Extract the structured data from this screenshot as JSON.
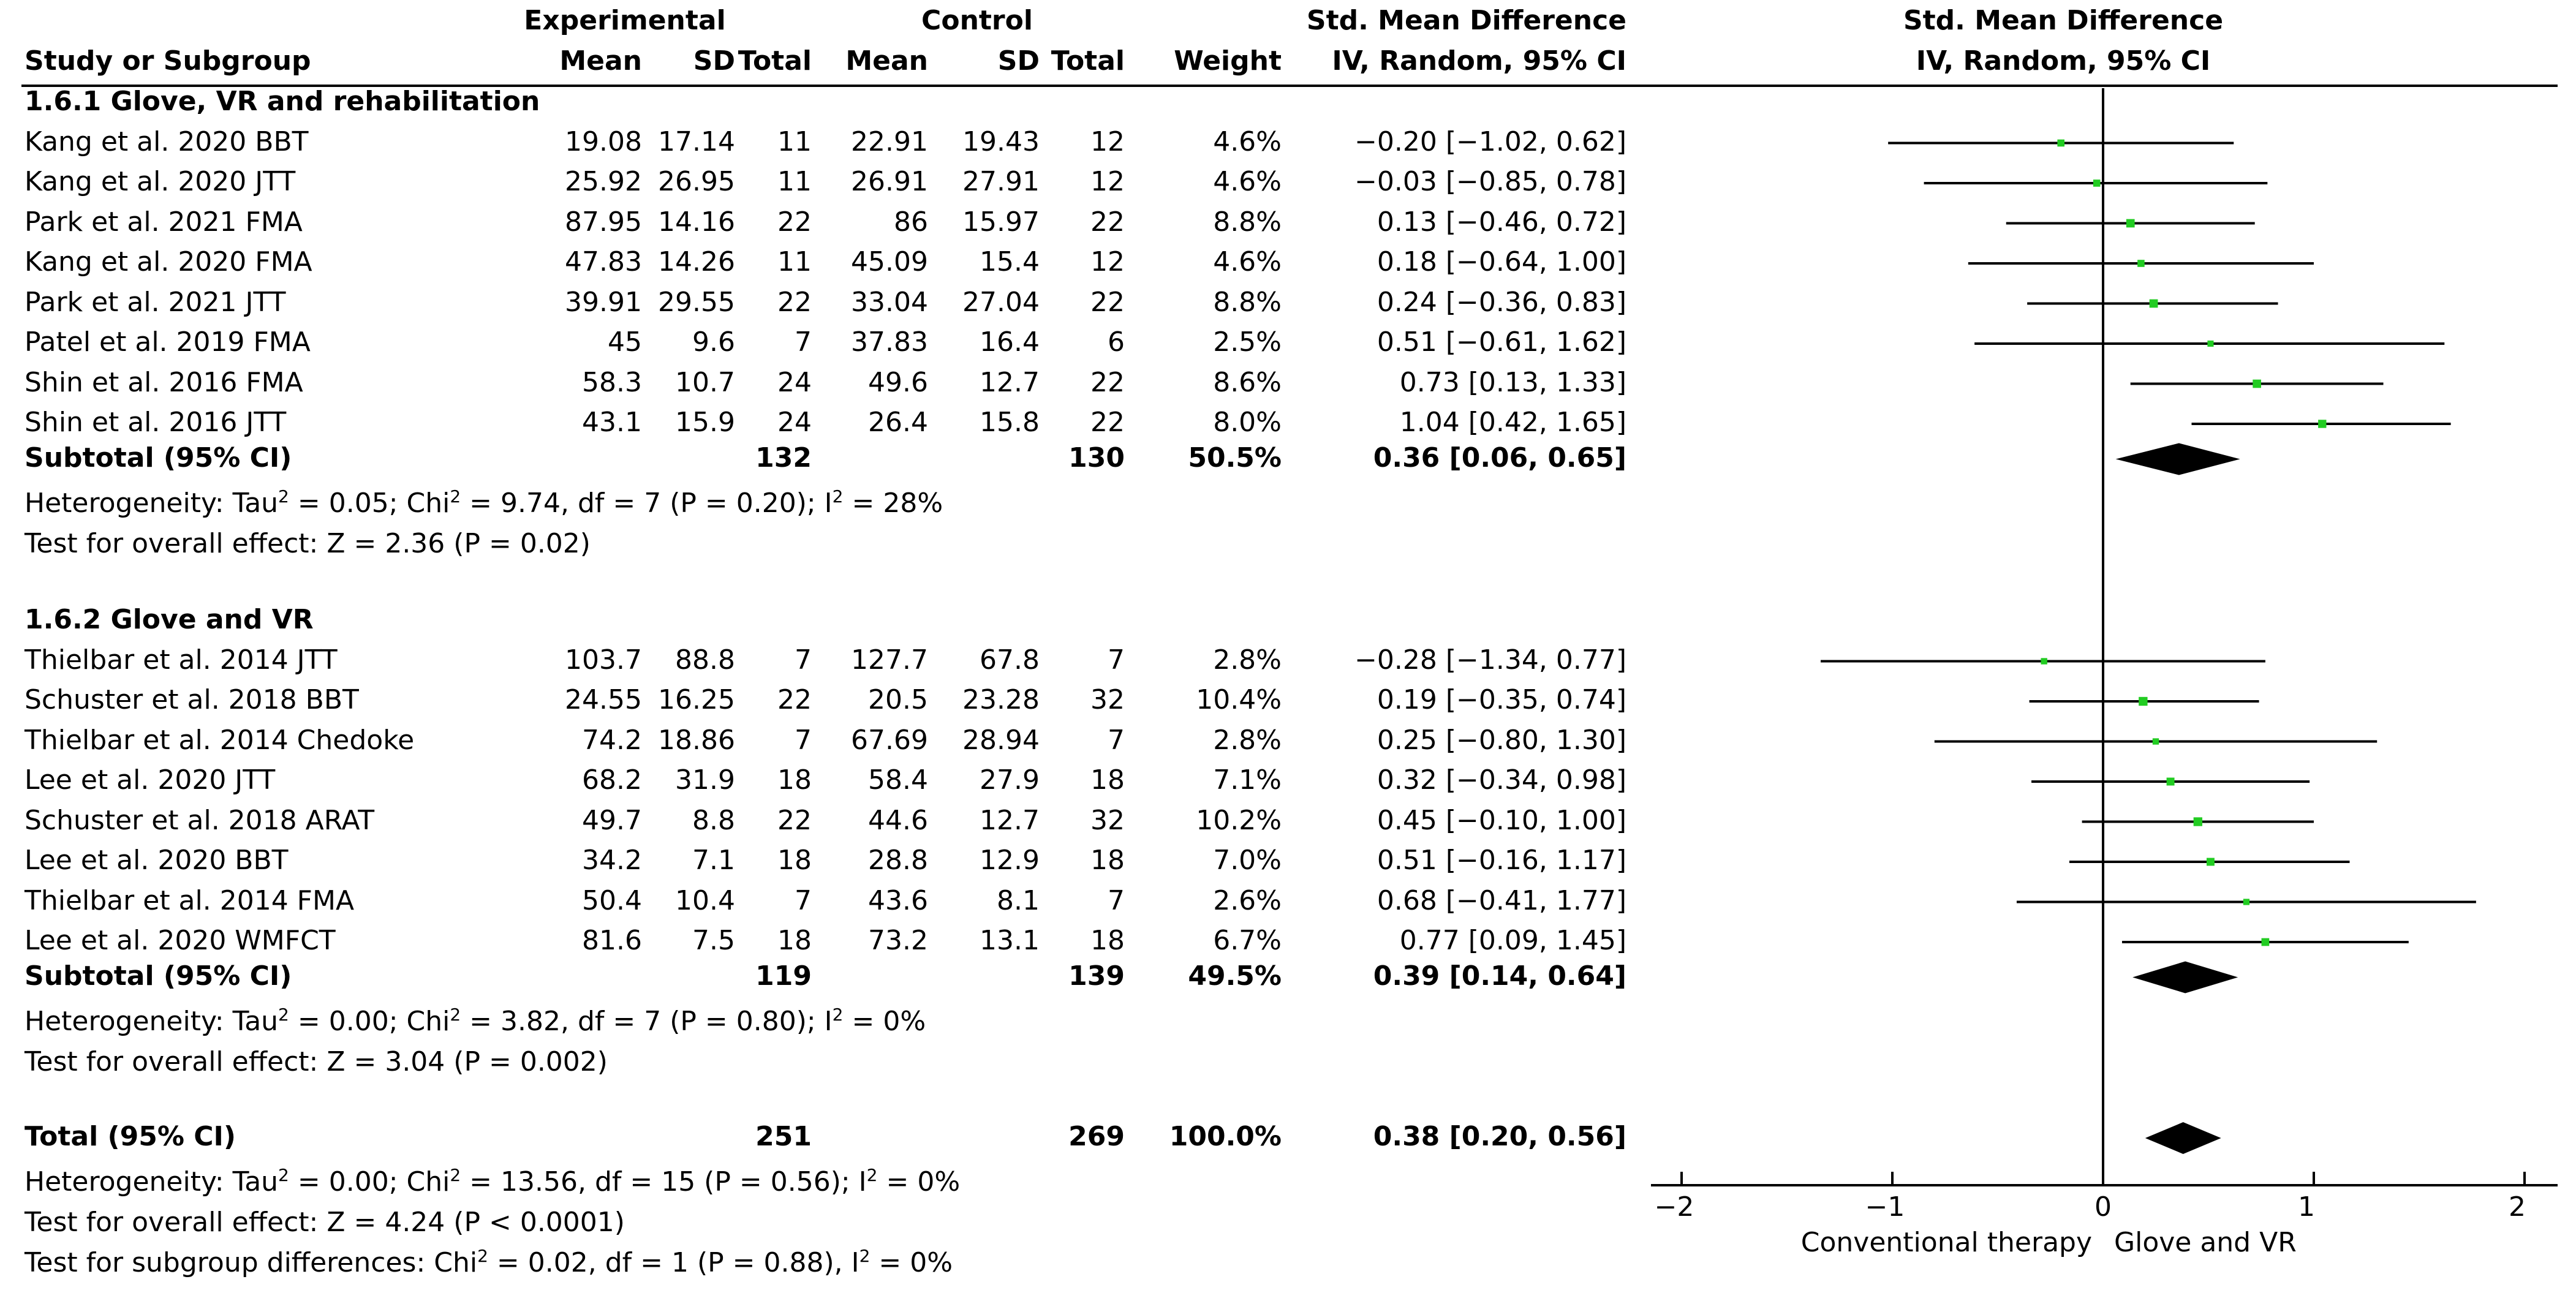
{
  "header": {
    "experimental": "Experimental",
    "control": "Control",
    "smd_table": "Std. Mean Difference",
    "smd_plot": "Std. Mean Difference",
    "method_table": "IV, Random, 95% CI",
    "method_plot": "IV, Random, 95% CI",
    "study": "Study or Subgroup",
    "mean_e": "Mean",
    "sd_e": "SD",
    "total_e": "Total",
    "mean_c": "Mean",
    "sd_c": "SD",
    "total_c": "Total",
    "weight": "Weight"
  },
  "groups": [
    {
      "title": "1.6.1 Glove, VR and rehabilitation",
      "studies": [
        {
          "name": "Kang et al. 2020 BBT",
          "mean_e": "19.08",
          "sd_e": "17.14",
          "n_e": "11",
          "mean_c": "22.91",
          "sd_c": "19.43",
          "n_c": "12",
          "weight": "4.6%",
          "ci": "−0.20 [−1.02, 0.62]",
          "est": -0.2,
          "lo": -1.02,
          "hi": 0.62,
          "w": 4.6
        },
        {
          "name": "Kang et al. 2020 JTT",
          "mean_e": "25.92",
          "sd_e": "26.95",
          "n_e": "11",
          "mean_c": "26.91",
          "sd_c": "27.91",
          "n_c": "12",
          "weight": "4.6%",
          "ci": "−0.03 [−0.85, 0.78]",
          "est": -0.03,
          "lo": -0.85,
          "hi": 0.78,
          "w": 4.6
        },
        {
          "name": "Park et al. 2021 FMA",
          "mean_e": "87.95",
          "sd_e": "14.16",
          "n_e": "22",
          "mean_c": "86",
          "sd_c": "15.97",
          "n_c": "22",
          "weight": "8.8%",
          "ci": "0.13 [−0.46, 0.72]",
          "est": 0.13,
          "lo": -0.46,
          "hi": 0.72,
          "w": 8.8
        },
        {
          "name": "Kang et al. 2020 FMA",
          "mean_e": "47.83",
          "sd_e": "14.26",
          "n_e": "11",
          "mean_c": "45.09",
          "sd_c": "15.4",
          "n_c": "12",
          "weight": "4.6%",
          "ci": "0.18 [−0.64, 1.00]",
          "est": 0.18,
          "lo": -0.64,
          "hi": 1.0,
          "w": 4.6
        },
        {
          "name": "Park et al. 2021 JTT",
          "mean_e": "39.91",
          "sd_e": "29.55",
          "n_e": "22",
          "mean_c": "33.04",
          "sd_c": "27.04",
          "n_c": "22",
          "weight": "8.8%",
          "ci": "0.24 [−0.36, 0.83]",
          "est": 0.24,
          "lo": -0.36,
          "hi": 0.83,
          "w": 8.8
        },
        {
          "name": "Patel et al. 2019 FMA",
          "mean_e": "45",
          "sd_e": "9.6",
          "n_e": "7",
          "mean_c": "37.83",
          "sd_c": "16.4",
          "n_c": "6",
          "weight": "2.5%",
          "ci": "0.51 [−0.61, 1.62]",
          "est": 0.51,
          "lo": -0.61,
          "hi": 1.62,
          "w": 2.5
        },
        {
          "name": "Shin et al. 2016 FMA",
          "mean_e": "58.3",
          "sd_e": "10.7",
          "n_e": "24",
          "mean_c": "49.6",
          "sd_c": "12.7",
          "n_c": "22",
          "weight": "8.6%",
          "ci": "0.73 [0.13, 1.33]",
          "est": 0.73,
          "lo": 0.13,
          "hi": 1.33,
          "w": 8.6
        },
        {
          "name": "Shin et al. 2016 JTT",
          "mean_e": "43.1",
          "sd_e": "15.9",
          "n_e": "24",
          "mean_c": "26.4",
          "sd_c": "15.8",
          "n_c": "22",
          "weight": "8.0%",
          "ci": "1.04 [0.42, 1.65]",
          "est": 1.04,
          "lo": 0.42,
          "hi": 1.65,
          "w": 8.0
        }
      ],
      "subtotal": {
        "label": "Subtotal (95% CI)",
        "n_e": "132",
        "n_c": "130",
        "weight": "50.5%",
        "ci": "0.36 [0.06, 0.65]",
        "est": 0.36,
        "lo": 0.06,
        "hi": 0.65
      },
      "heterogeneity": {
        "tau_prefix": "Heterogeneity: Tau",
        "chi_prefix": "; Chi",
        "chi_rest": " = 9.74, df = 7 (P = 0.20); I",
        "tau_rest": " = 0.05",
        "i2_rest": " = 28%"
      },
      "overall_effect": "Test for overall effect: Z = 2.36 (P = 0.02)"
    },
    {
      "title": "1.6.2 Glove and VR",
      "studies": [
        {
          "name": "Thielbar et al. 2014 JTT",
          "mean_e": "103.7",
          "sd_e": "88.8",
          "n_e": "7",
          "mean_c": "127.7",
          "sd_c": "67.8",
          "n_c": "7",
          "weight": "2.8%",
          "ci": "−0.28 [−1.34, 0.77]",
          "est": -0.28,
          "lo": -1.34,
          "hi": 0.77,
          "w": 2.8
        },
        {
          "name": "Schuster et al. 2018 BBT",
          "mean_e": "24.55",
          "sd_e": "16.25",
          "n_e": "22",
          "mean_c": "20.5",
          "sd_c": "23.28",
          "n_c": "32",
          "weight": "10.4%",
          "ci": "0.19 [−0.35, 0.74]",
          "est": 0.19,
          "lo": -0.35,
          "hi": 0.74,
          "w": 10.4
        },
        {
          "name": "Thielbar et al. 2014 Chedoke",
          "mean_e": "74.2",
          "sd_e": "18.86",
          "n_e": "7",
          "mean_c": "67.69",
          "sd_c": "28.94",
          "n_c": "7",
          "weight": "2.8%",
          "ci": "0.25 [−0.80, 1.30]",
          "est": 0.25,
          "lo": -0.8,
          "hi": 1.3,
          "w": 2.8
        },
        {
          "name": "Lee et al. 2020 JTT",
          "mean_e": "68.2",
          "sd_e": "31.9",
          "n_e": "18",
          "mean_c": "58.4",
          "sd_c": "27.9",
          "n_c": "18",
          "weight": "7.1%",
          "ci": "0.32 [−0.34, 0.98]",
          "est": 0.32,
          "lo": -0.34,
          "hi": 0.98,
          "w": 7.1
        },
        {
          "name": "Schuster et al. 2018 ARAT",
          "mean_e": "49.7",
          "sd_e": "8.8",
          "n_e": "22",
          "mean_c": "44.6",
          "sd_c": "12.7",
          "n_c": "32",
          "weight": "10.2%",
          "ci": "0.45 [−0.10, 1.00]",
          "est": 0.45,
          "lo": -0.1,
          "hi": 1.0,
          "w": 10.2
        },
        {
          "name": "Lee et al. 2020 BBT",
          "mean_e": "34.2",
          "sd_e": "7.1",
          "n_e": "18",
          "mean_c": "28.8",
          "sd_c": "12.9",
          "n_c": "18",
          "weight": "7.0%",
          "ci": "0.51 [−0.16, 1.17]",
          "est": 0.51,
          "lo": -0.16,
          "hi": 1.17,
          "w": 7.0
        },
        {
          "name": "Thielbar et al. 2014 FMA",
          "mean_e": "50.4",
          "sd_e": "10.4",
          "n_e": "7",
          "mean_c": "43.6",
          "sd_c": "8.1",
          "n_c": "7",
          "weight": "2.6%",
          "ci": "0.68 [−0.41, 1.77]",
          "est": 0.68,
          "lo": -0.41,
          "hi": 1.77,
          "w": 2.6
        },
        {
          "name": "Lee et al. 2020 WMFCT",
          "mean_e": "81.6",
          "sd_e": "7.5",
          "n_e": "18",
          "mean_c": "73.2",
          "sd_c": "13.1",
          "n_c": "18",
          "weight": "6.7%",
          "ci": "0.77 [0.09, 1.45]",
          "est": 0.77,
          "lo": 0.09,
          "hi": 1.45,
          "w": 6.7
        }
      ],
      "subtotal": {
        "label": "Subtotal (95% CI)",
        "n_e": "119",
        "n_c": "139",
        "weight": "49.5%",
        "ci": "0.39 [0.14, 0.64]",
        "est": 0.39,
        "lo": 0.14,
        "hi": 0.64
      },
      "heterogeneity": {
        "tau_prefix": "Heterogeneity: Tau",
        "chi_prefix": "; Chi",
        "chi_rest": " = 3.82, df = 7 (P = 0.80); I",
        "tau_rest": " = 0.00",
        "i2_rest": " = 0%"
      },
      "overall_effect": "Test for overall effect: Z = 3.04 (P = 0.002)"
    }
  ],
  "total": {
    "label": "Total (95% CI)",
    "n_e": "251",
    "n_c": "269",
    "weight": "100.0%",
    "ci": "0.38 [0.20, 0.56]",
    "est": 0.38,
    "lo": 0.2,
    "hi": 0.56,
    "heterogeneity": {
      "tau_prefix": "Heterogeneity: Tau",
      "chi_prefix": "; Chi",
      "chi_rest": " = 13.56, df = 15 (P = 0.56); I",
      "tau_rest": " = 0.00",
      "i2_rest": " = 0%"
    },
    "overall_effect": "Test for overall effect: Z = 4.24 (P < 0.0001)",
    "subgroup_prefix": "Test for subgroup differences: Chi",
    "subgroup_rest": " = 0.02, df = 1 (P = 0.88), I",
    "subgroup_i2": " = 0%",
    "superscript": "2"
  },
  "chart_data": {
    "type": "forest",
    "title": "Std. Mean Difference",
    "subtitle": "IV, Random, 95% CI",
    "xlim": [
      -2,
      2
    ],
    "ticks": [
      -2,
      -1,
      0,
      1,
      2
    ],
    "tick_labels": [
      "−2",
      "−1",
      "0",
      "1",
      "2"
    ],
    "xlabel_left": "Conventional therapy",
    "xlabel_right": "Glove and VR",
    "colors": {
      "marker": "#22cc22",
      "line": "#000000",
      "diamond": "#000000"
    }
  }
}
